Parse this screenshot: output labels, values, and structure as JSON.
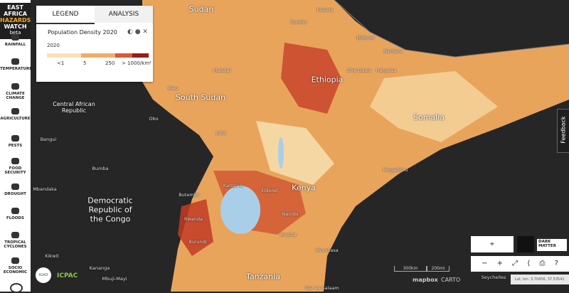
{
  "header": {
    "title_lines": [
      "EAST",
      "AFRICA",
      "HAZARDS",
      "WATCH"
    ],
    "beta": "beta"
  },
  "nav": [
    "RAINFALL",
    "TEMPERATURE",
    "CLIMATE CHANGE",
    "AGRICULTURE",
    "PESTS",
    "FOOD SECURITY",
    "DROUGHT",
    "FLOODS",
    "TROPICAL CYCLONES",
    "SOCIO ECONOMIC"
  ],
  "legend_panel": {
    "tabs": [
      "LEGEND",
      "ANALYSIS"
    ],
    "layer_title": "Population Density 2020",
    "year": "2020",
    "scale_labels": [
      "<1",
      "5",
      "250",
      "> 1000/km²"
    ]
  },
  "map_labels": [
    "Sudan",
    "Mekele",
    "Gonder",
    "Djibouti",
    "Berbera",
    "Ethiopia",
    "Dire Dawa",
    "Hargeisa",
    "Malakal",
    "Wau",
    "South Sudan",
    "Central African Republic",
    "Obo",
    "Juba",
    "Somalia",
    "Bangui",
    "Bumba",
    "Mogadishu",
    "Mbandaka",
    "Kenya",
    "Democratic Republic of the Congo",
    "Butembo",
    "Kampala",
    "Eldoret",
    "Nairobi",
    "Rwanda",
    "Burundi",
    "Arusha",
    "Mombasa",
    "Kikwit",
    "Tanzania",
    "Kananga",
    "Mbuji-Mayi",
    "Dar es Salaam",
    "Seychelles"
  ],
  "basemap": "DARK MATTER",
  "feedback": "Feedback",
  "scale": [
    "300km",
    "200mi"
  ],
  "attribution": [
    "mapbox",
    "CARTO"
  ],
  "coordinates": "Lat, lon: 3.70456, 37.53541",
  "logos": [
    "IGAD",
    "ICPAC"
  ]
}
